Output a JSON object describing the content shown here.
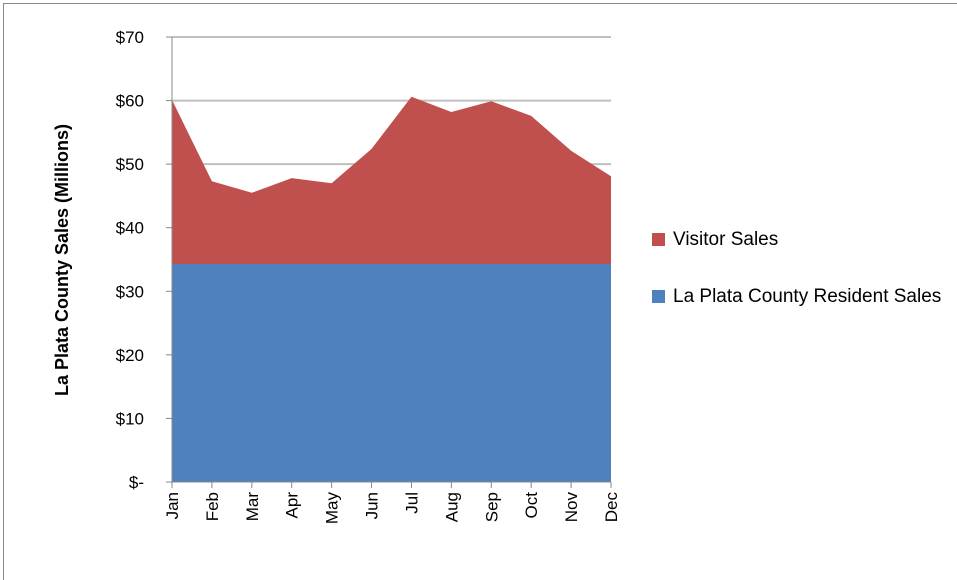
{
  "chart_data": {
    "type": "stacked-area",
    "y_label": "La Plata County Sales (Millions)",
    "categories": [
      "Jan",
      "Feb",
      "Mar",
      "Apr",
      "May",
      "Jun",
      "Jul",
      "Aug",
      "Sep",
      "Oct",
      "Nov",
      "Dec"
    ],
    "series": [
      {
        "name": "La Plata County Resident Sales",
        "color": "#4f81bd",
        "values": [
          34.3,
          34.3,
          34.3,
          34.3,
          34.3,
          34.3,
          34.3,
          34.3,
          34.3,
          34.3,
          34.3,
          34.3
        ]
      },
      {
        "name": "Visitor Sales",
        "color": "#c0504d",
        "values": [
          25.8,
          13.0,
          11.2,
          13.5,
          12.7,
          18.1,
          26.3,
          23.9,
          25.6,
          23.3,
          17.8,
          13.8
        ]
      }
    ],
    "ylim": [
      0,
      70
    ],
    "yticks": [
      {
        "value": 0,
        "label": "$-"
      },
      {
        "value": 10,
        "label": "$10"
      },
      {
        "value": 20,
        "label": "$20"
      },
      {
        "value": 30,
        "label": "$30"
      },
      {
        "value": 40,
        "label": "$40"
      },
      {
        "value": 50,
        "label": "$50"
      },
      {
        "value": 60,
        "label": "$60"
      },
      {
        "value": 70,
        "label": "$70"
      }
    ],
    "grid": true
  }
}
